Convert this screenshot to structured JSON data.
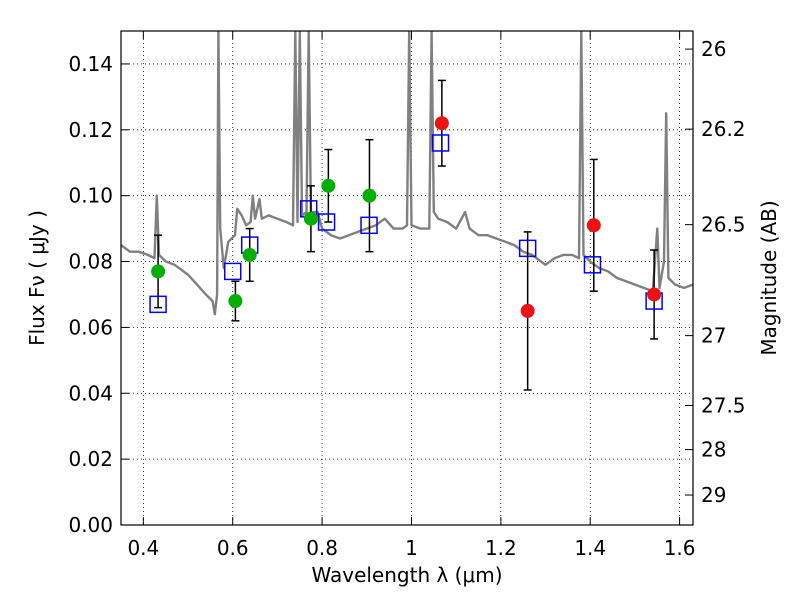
{
  "chart_data": {
    "type": "scatter",
    "xlabel": "Wavelength  λ (μm)",
    "ylabel": "Flux  Fν  ( μJy )",
    "ylabel_right": "Magnitude (AB)",
    "xlim": [
      0.35,
      1.63
    ],
    "ylim": [
      0.0,
      0.15
    ],
    "grid": true,
    "x_ticks": [
      0.4,
      0.6,
      0.8,
      1.0,
      1.2,
      1.4,
      1.6
    ],
    "x_tick_labels": [
      "0.4",
      "0.6",
      "0.8",
      "1",
      "1.2",
      "1.4",
      "1.6"
    ],
    "y_ticks": [
      0.0,
      0.02,
      0.04,
      0.06,
      0.08,
      0.1,
      0.12,
      0.14
    ],
    "y_tick_labels": [
      "0.00",
      "0.02",
      "0.04",
      "0.06",
      "0.08",
      "0.10",
      "0.12",
      "0.14"
    ],
    "right_ticks": [
      {
        "label": "26",
        "flux": 0.1445
      },
      {
        "label": "26.2",
        "flux": 0.1202
      },
      {
        "label": "26.5",
        "flux": 0.0912
      },
      {
        "label": "27",
        "flux": 0.0575
      },
      {
        "label": "27.5",
        "flux": 0.0363
      },
      {
        "label": "28",
        "flux": 0.0229
      },
      {
        "label": "29",
        "flux": 0.0091
      }
    ],
    "model_spectrum": {
      "name": "model SED",
      "color": "#808080",
      "points": [
        [
          0.35,
          0.085
        ],
        [
          0.37,
          0.083
        ],
        [
          0.39,
          0.083
        ],
        [
          0.41,
          0.082
        ],
        [
          0.425,
          0.081
        ],
        [
          0.43,
          0.1
        ],
        [
          0.435,
          0.082
        ],
        [
          0.45,
          0.08
        ],
        [
          0.47,
          0.079
        ],
        [
          0.5,
          0.076
        ],
        [
          0.52,
          0.073
        ],
        [
          0.54,
          0.07
        ],
        [
          0.555,
          0.068
        ],
        [
          0.56,
          0.064
        ],
        [
          0.565,
          0.07
        ],
        [
          0.568,
          0.15
        ],
        [
          0.572,
          0.09
        ],
        [
          0.58,
          0.078
        ],
        [
          0.59,
          0.086
        ],
        [
          0.605,
          0.088
        ],
        [
          0.61,
          0.096
        ],
        [
          0.62,
          0.094
        ],
        [
          0.63,
          0.091
        ],
        [
          0.64,
          0.092
        ],
        [
          0.645,
          0.1
        ],
        [
          0.65,
          0.093
        ],
        [
          0.66,
          0.099
        ],
        [
          0.665,
          0.093
        ],
        [
          0.68,
          0.094
        ],
        [
          0.7,
          0.093
        ],
        [
          0.72,
          0.092
        ],
        [
          0.735,
          0.091
        ],
        [
          0.74,
          0.15
        ],
        [
          0.745,
          0.092
        ],
        [
          0.75,
          0.15
        ],
        [
          0.755,
          0.094
        ],
        [
          0.765,
          0.095
        ],
        [
          0.77,
          0.15
        ],
        [
          0.775,
          0.095
        ],
        [
          0.79,
          0.095
        ],
        [
          0.8,
          0.09
        ],
        [
          0.82,
          0.088
        ],
        [
          0.84,
          0.087
        ],
        [
          0.86,
          0.088
        ],
        [
          0.88,
          0.089
        ],
        [
          0.9,
          0.09
        ],
        [
          0.92,
          0.091
        ],
        [
          0.94,
          0.093
        ],
        [
          0.96,
          0.09
        ],
        [
          0.98,
          0.09
        ],
        [
          0.99,
          0.091
        ],
        [
          0.995,
          0.15
        ],
        [
          1.0,
          0.091
        ],
        [
          1.02,
          0.09
        ],
        [
          1.04,
          0.09
        ],
        [
          1.045,
          0.15
        ],
        [
          1.05,
          0.095
        ],
        [
          1.06,
          0.093
        ],
        [
          1.08,
          0.092
        ],
        [
          1.1,
          0.09
        ],
        [
          1.12,
          0.095
        ],
        [
          1.13,
          0.09
        ],
        [
          1.15,
          0.088
        ],
        [
          1.17,
          0.088
        ],
        [
          1.19,
          0.087
        ],
        [
          1.21,
          0.086
        ],
        [
          1.23,
          0.085
        ],
        [
          1.25,
          0.083
        ],
        [
          1.27,
          0.082
        ],
        [
          1.29,
          0.08
        ],
        [
          1.3,
          0.079
        ],
        [
          1.32,
          0.081
        ],
        [
          1.34,
          0.082
        ],
        [
          1.36,
          0.082
        ],
        [
          1.375,
          0.081
        ],
        [
          1.38,
          0.15
        ],
        [
          1.385,
          0.082
        ],
        [
          1.4,
          0.08
        ],
        [
          1.42,
          0.078
        ],
        [
          1.44,
          0.077
        ],
        [
          1.46,
          0.075
        ],
        [
          1.48,
          0.074
        ],
        [
          1.5,
          0.073
        ],
        [
          1.52,
          0.072
        ],
        [
          1.54,
          0.071
        ],
        [
          1.55,
          0.09
        ],
        [
          1.555,
          0.072
        ],
        [
          1.565,
          0.08
        ],
        [
          1.57,
          0.125
        ],
        [
          1.575,
          0.075
        ],
        [
          1.59,
          0.073
        ],
        [
          1.61,
          0.072
        ],
        [
          1.63,
          0.073
        ]
      ]
    },
    "series": [
      {
        "name": "green points",
        "color": "#00b000",
        "marker": "circle",
        "points": [
          {
            "x": 0.433,
            "y": 0.077,
            "err": 0.011
          },
          {
            "x": 0.606,
            "y": 0.068,
            "err": 0.006
          },
          {
            "x": 0.638,
            "y": 0.082,
            "err": 0.008
          },
          {
            "x": 0.775,
            "y": 0.093,
            "err": 0.01
          },
          {
            "x": 0.814,
            "y": 0.103,
            "err": 0.011
          },
          {
            "x": 0.906,
            "y": 0.1,
            "err": 0.017
          }
        ]
      },
      {
        "name": "red points",
        "color": "#ee1111",
        "marker": "circle",
        "points": [
          {
            "x": 1.068,
            "y": 0.122,
            "err": 0.013
          },
          {
            "x": 1.26,
            "y": 0.065,
            "err": 0.024
          },
          {
            "x": 1.408,
            "y": 0.091,
            "err": 0.02
          },
          {
            "x": 1.543,
            "y": 0.07,
            "err": 0.0135
          }
        ]
      },
      {
        "name": "model fluxes",
        "color": "#0000ff",
        "marker": "open-square",
        "points": [
          {
            "x": 0.433,
            "y": 0.067
          },
          {
            "x": 0.6,
            "y": 0.077
          },
          {
            "x": 0.638,
            "y": 0.085
          },
          {
            "x": 0.77,
            "y": 0.096
          },
          {
            "x": 0.81,
            "y": 0.092
          },
          {
            "x": 0.905,
            "y": 0.091
          },
          {
            "x": 1.065,
            "y": 0.116
          },
          {
            "x": 1.26,
            "y": 0.084
          },
          {
            "x": 1.405,
            "y": 0.079
          },
          {
            "x": 1.543,
            "y": 0.068
          }
        ]
      }
    ]
  }
}
